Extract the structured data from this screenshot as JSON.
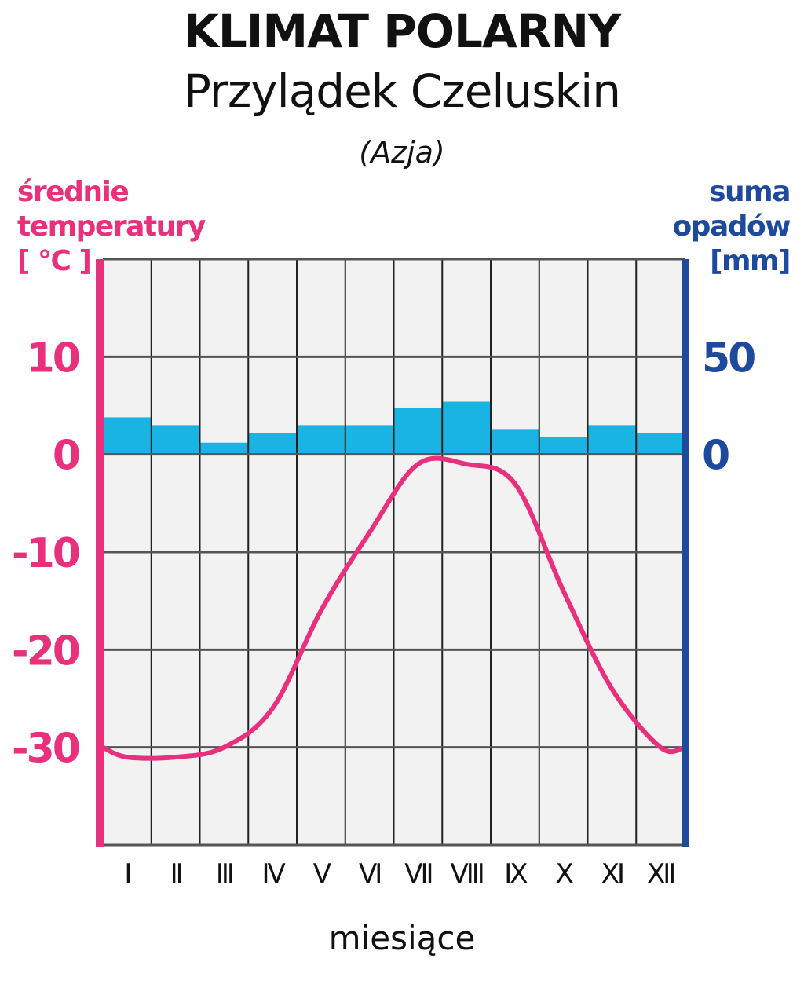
{
  "header": {
    "title": "KLIMAT POLARNY",
    "subtitle": "Przylądek Czeluskin",
    "region": "(Azja)"
  },
  "left_axis": {
    "lines": [
      "średnie",
      "temperatury",
      "[ °C ]"
    ],
    "color": "#e8307c"
  },
  "right_axis": {
    "lines": [
      "suma",
      "opadów",
      "[mm]"
    ],
    "color": "#1d4a9c"
  },
  "chart_data": {
    "type": "bar+line",
    "title": "KLIMAT POLARNY",
    "subtitle": "Przylądek Czeluskin",
    "xlabel": "miesiące",
    "categories": [
      "I",
      "II",
      "III",
      "IV",
      "V",
      "VI",
      "VII",
      "VIII",
      "IX",
      "X",
      "XI",
      "XII"
    ],
    "temperature": {
      "label": "średnie temperatury [ °C ]",
      "unit": "°C",
      "values": [
        -31,
        -31,
        -30,
        -26,
        -16,
        -8,
        -1,
        -1,
        -3,
        -14,
        -24,
        -30
      ],
      "ylim": [
        -40,
        20
      ],
      "ticks": [
        10,
        0,
        -10,
        -20,
        -30
      ],
      "color": "#e8307c"
    },
    "precipitation": {
      "label": "suma opadów [mm]",
      "unit": "mm",
      "values": [
        19,
        15,
        6,
        11,
        15,
        15,
        24,
        27,
        13,
        9,
        15,
        11
      ],
      "ylim": [
        0,
        100
      ],
      "ticks": [
        50,
        0
      ],
      "color": "#1ab4e3"
    },
    "grid": true
  }
}
